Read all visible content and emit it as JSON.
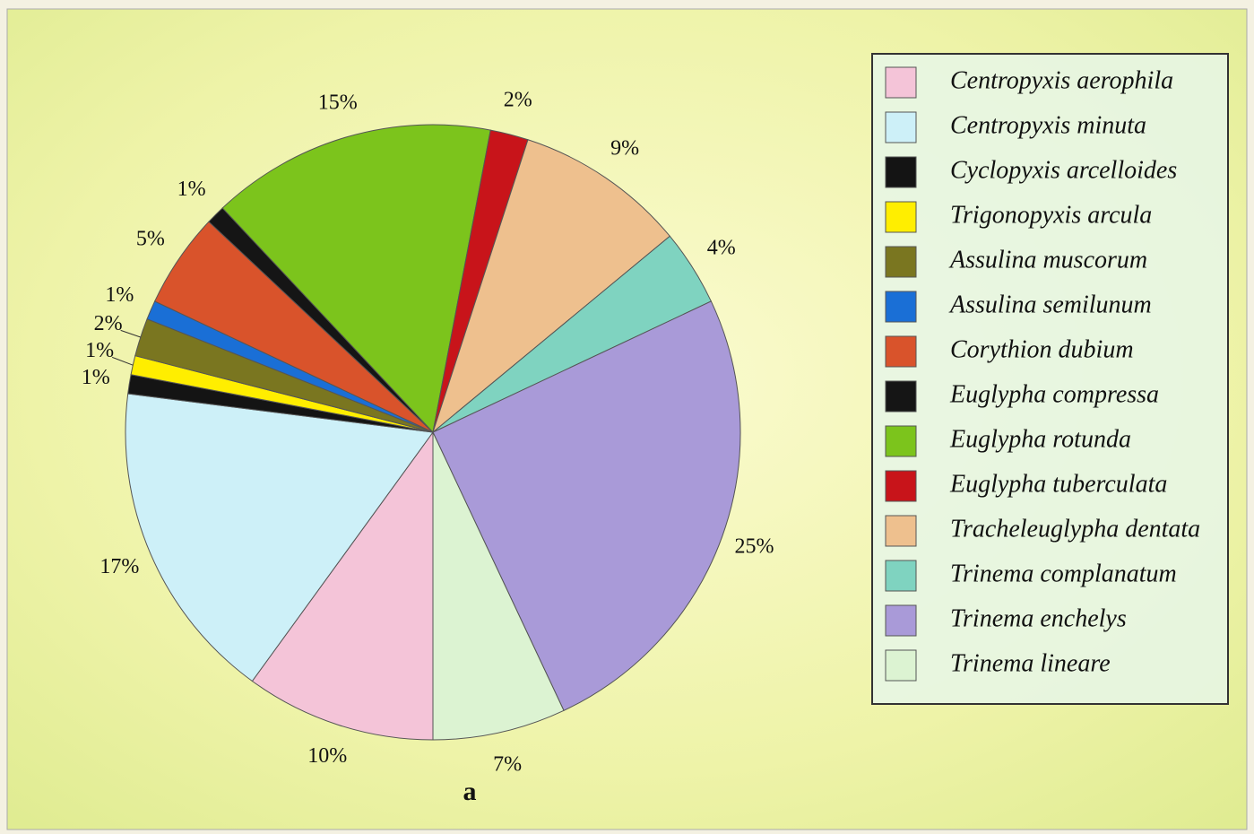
{
  "chart_data": {
    "type": "pie",
    "caption": "a",
    "categories": [
      "Centropyxis aerophila",
      "Centropyxis minuta",
      "Cyclopyxis arcelloides",
      "Trigonopyxis arcula",
      "Assulina muscorum",
      "Assulina semilunum",
      "Corythion dubium",
      "Euglypha compressa",
      "Euglypha rotunda",
      "Euglypha tuberculata",
      "Tracheleuglypha dentata",
      "Trinema complanatum",
      "Trinema enchelys",
      "Trinema lineare"
    ],
    "values": [
      10,
      17,
      1,
      1,
      2,
      1,
      5,
      1,
      15,
      2,
      9,
      4,
      25,
      7
    ],
    "value_labels": [
      "10%",
      "17%",
      "1%",
      "1%",
      "2%",
      "1%",
      "5%",
      "1%",
      "15%",
      "2%",
      "9%",
      "4%",
      "25%",
      "7%"
    ],
    "colors": [
      "#f4c4d8",
      "#cdf0f8",
      "#141414",
      "#ffee00",
      "#7a7620",
      "#1a6fd6",
      "#d9532b",
      "#151515",
      "#7cc41c",
      "#c8141a",
      "#eec08e",
      "#7fd3c0",
      "#a99ad8",
      "#dcf3d2"
    ],
    "start_angle": 180,
    "direction": "clockwise",
    "legend": "right"
  }
}
